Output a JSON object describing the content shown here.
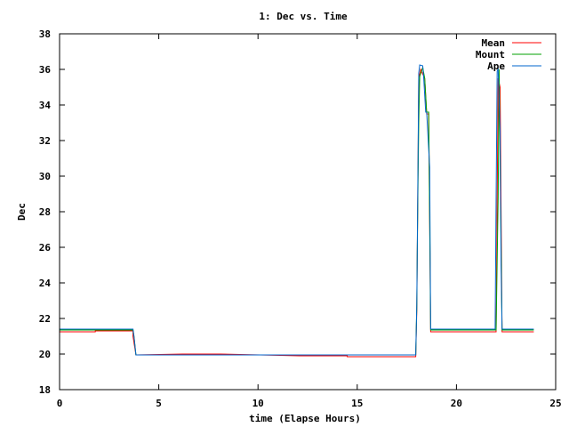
{
  "chart_data": {
    "type": "line",
    "title": "1: Dec vs. Time",
    "xlabel": "time (Elapse Hours)",
    "ylabel": "Dec",
    "xlim": [
      0,
      25
    ],
    "ylim": [
      18,
      38
    ],
    "xticks": [
      0,
      5,
      10,
      15,
      20,
      25
    ],
    "yticks": [
      18,
      20,
      22,
      24,
      26,
      28,
      30,
      32,
      34,
      36,
      38
    ],
    "grid": false,
    "legend_position": "top-right",
    "series": [
      {
        "name": "Mean",
        "color": "#ff0000",
        "x": [
          0,
          1.8,
          1.8,
          3.7,
          3.7,
          3.85,
          6.2,
          8.1,
          12.1,
          14.5,
          14.5,
          17.95,
          18.0,
          18.1,
          18.2,
          18.4,
          18.5,
          18.6,
          18.7,
          22.0,
          22.1,
          22.2,
          22.3,
          23.9
        ],
        "y": [
          21.25,
          21.25,
          21.3,
          21.3,
          21.0,
          19.95,
          20.0,
          20.0,
          19.9,
          19.9,
          19.85,
          19.85,
          22.5,
          35.5,
          36.0,
          35.5,
          33.5,
          33.5,
          21.25,
          21.25,
          35.5,
          35.0,
          21.25,
          21.25
        ]
      },
      {
        "name": "Mount",
        "color": "#00a000",
        "x": [
          0,
          3.7,
          3.75,
          3.85,
          17.95,
          18.0,
          18.05,
          18.1,
          18.15,
          18.3,
          18.4,
          18.5,
          18.6,
          18.7,
          22.0,
          22.1,
          22.15,
          22.3,
          23.9
        ],
        "y": [
          21.35,
          21.35,
          21.0,
          19.95,
          19.95,
          22.8,
          28.5,
          33.0,
          35.6,
          36.1,
          35.5,
          33.6,
          33.6,
          21.35,
          21.35,
          28.8,
          36.0,
          21.35,
          21.35
        ]
      },
      {
        "name": "Ape",
        "color": "#0066cc",
        "x": [
          0,
          3.7,
          3.75,
          3.85,
          8.1,
          17.95,
          18.0,
          18.1,
          18.15,
          18.3,
          18.35,
          18.45,
          18.5,
          18.65,
          18.7,
          21.95,
          22.0,
          22.05,
          22.1,
          22.2,
          22.25,
          22.3,
          23.9
        ],
        "y": [
          21.4,
          21.4,
          21.0,
          19.95,
          19.95,
          19.95,
          22.8,
          35.8,
          36.25,
          36.2,
          35.5,
          33.6,
          33.6,
          30.5,
          21.4,
          21.4,
          28.7,
          35.9,
          36.0,
          32.5,
          25.0,
          21.4,
          21.4
        ]
      }
    ]
  }
}
